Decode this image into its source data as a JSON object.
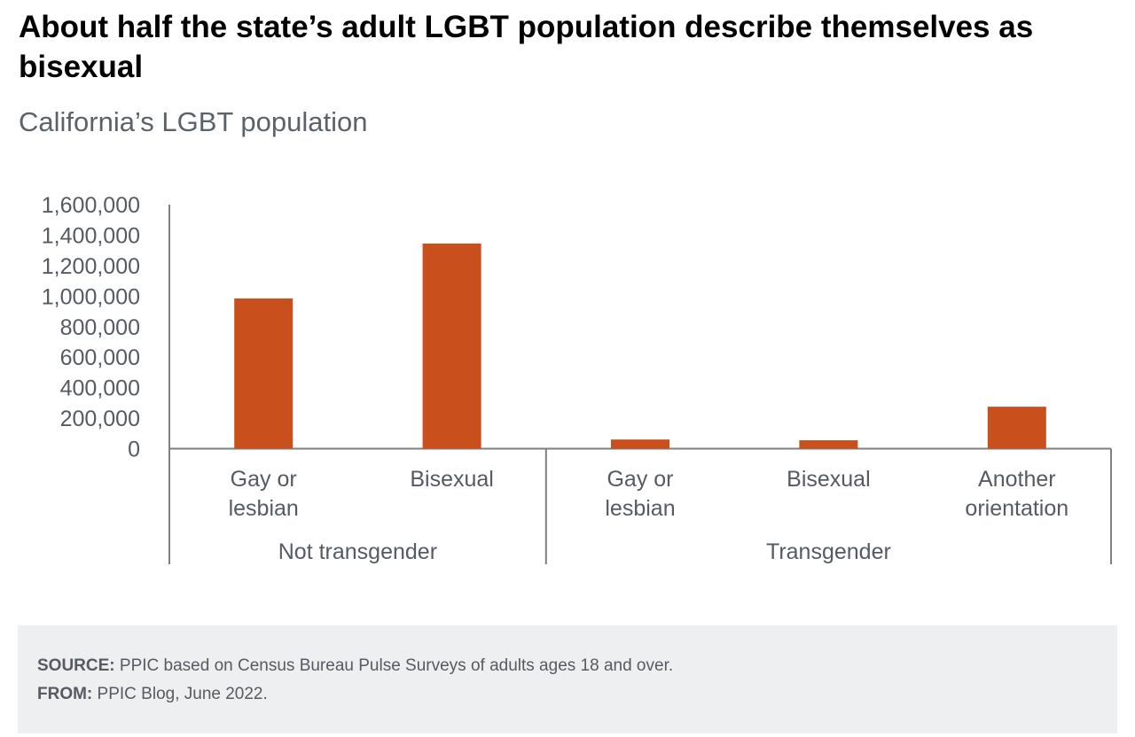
{
  "title": "About half the state’s adult LGBT population describe themselves as bisexual",
  "subtitle": "California’s LGBT population",
  "chart_data": {
    "type": "bar",
    "categories": [
      {
        "label": [
          "Gay or",
          "lesbian"
        ],
        "group": "Not transgender"
      },
      {
        "label": [
          "Bisexual"
        ],
        "group": "Not transgender"
      },
      {
        "label": [
          "Gay or",
          "lesbian"
        ],
        "group": "Transgender"
      },
      {
        "label": [
          "Bisexual"
        ],
        "group": "Transgender"
      },
      {
        "label": [
          "Another",
          "orientation"
        ],
        "group": "Transgender"
      }
    ],
    "groups": [
      "Not transgender",
      "Transgender"
    ],
    "values": [
      985000,
      1345000,
      60000,
      55000,
      275000
    ],
    "ylim": [
      0,
      1600000
    ],
    "yticks": [
      "0",
      "200,000",
      "400,000",
      "600,000",
      "800,000",
      "1,000,000",
      "1,200,000",
      "1,400,000",
      "1,600,000"
    ],
    "bar_color": "#c94f1c",
    "grid": false,
    "xlabel": "",
    "ylabel": ""
  },
  "note": {
    "source_label": "SOURCE:",
    "source_text": " PPIC based on Census Bureau Pulse Surveys of adults ages 18 and over.",
    "from_label": "FROM:",
    "from_text": " PPIC Blog, June 2022."
  }
}
